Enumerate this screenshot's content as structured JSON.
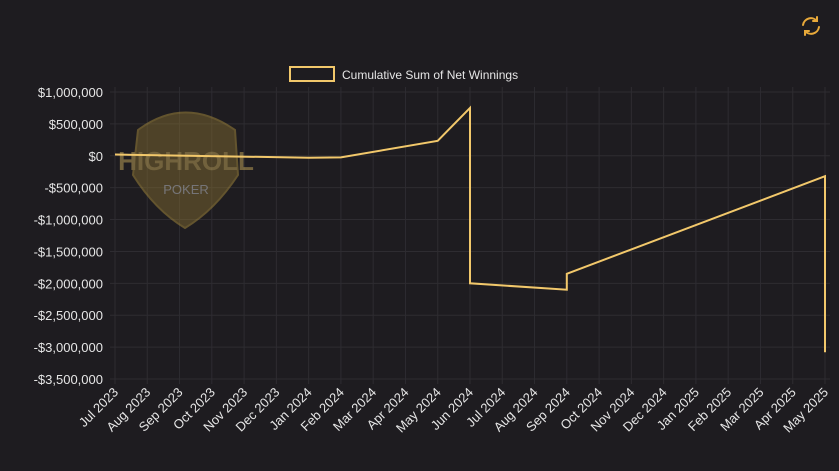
{
  "chart_data": {
    "type": "line",
    "watermark": {
      "title": "HIGHROLL",
      "subtitle": "POKER"
    },
    "x": [
      "2023-07",
      "2024-01",
      "2024-02",
      "2024-05",
      "2024-06",
      "2024-06",
      "2024-09",
      "2024-09",
      "2025-05",
      "2025-05"
    ],
    "series": [
      {
        "name": "Cumulative Sum of Net Winnings",
        "color": "#f2c86b",
        "values": [
          20000,
          -30000,
          -25000,
          235000,
          750000,
          -2000000,
          -2100000,
          -1850000,
          -320000,
          -3080000
        ]
      }
    ],
    "xlim": [
      "2023-07",
      "2025-05"
    ],
    "xticks": [
      {
        "value": "2023-07",
        "label": "Jul 2023"
      },
      {
        "value": "2023-08",
        "label": "Aug 2023"
      },
      {
        "value": "2023-09",
        "label": "Sep 2023"
      },
      {
        "value": "2023-10",
        "label": "Oct 2023"
      },
      {
        "value": "2023-11",
        "label": "Nov 2023"
      },
      {
        "value": "2023-12",
        "label": "Dec 2023"
      },
      {
        "value": "2024-01",
        "label": "Jan 2024"
      },
      {
        "value": "2024-02",
        "label": "Feb 2024"
      },
      {
        "value": "2024-03",
        "label": "Mar 2024"
      },
      {
        "value": "2024-04",
        "label": "Apr 2024"
      },
      {
        "value": "2024-05",
        "label": "May 2024"
      },
      {
        "value": "2024-06",
        "label": "Jun 2024"
      },
      {
        "value": "2024-07",
        "label": "Jul 2024"
      },
      {
        "value": "2024-08",
        "label": "Aug 2024"
      },
      {
        "value": "2024-09",
        "label": "Sep 2024"
      },
      {
        "value": "2024-10",
        "label": "Oct 2024"
      },
      {
        "value": "2024-11",
        "label": "Nov 2024"
      },
      {
        "value": "2024-12",
        "label": "Dec 2024"
      },
      {
        "value": "2025-01",
        "label": "Jan 2025"
      },
      {
        "value": "2025-02",
        "label": "Feb 2025"
      },
      {
        "value": "2025-03",
        "label": "Mar 2025"
      },
      {
        "value": "2025-04",
        "label": "Apr 2025"
      },
      {
        "value": "2025-05",
        "label": "May 2025"
      }
    ],
    "ylim": [
      -3500000,
      1000000
    ],
    "yticks": [
      {
        "value": 1000000,
        "label": "$1,000,000"
      },
      {
        "value": 500000,
        "label": "$500,000"
      },
      {
        "value": 0,
        "label": "$0"
      },
      {
        "value": -500000,
        "label": "-$500,000"
      },
      {
        "value": -1000000,
        "label": "-$1,000,000"
      },
      {
        "value": -1500000,
        "label": "-$1,500,000"
      },
      {
        "value": -2000000,
        "label": "-$2,000,000"
      },
      {
        "value": -2500000,
        "label": "-$2,500,000"
      },
      {
        "value": -3000000,
        "label": "-$3,000,000"
      },
      {
        "value": -3500000,
        "label": "-$3,500,000"
      }
    ],
    "grid": true,
    "legend": "top"
  }
}
